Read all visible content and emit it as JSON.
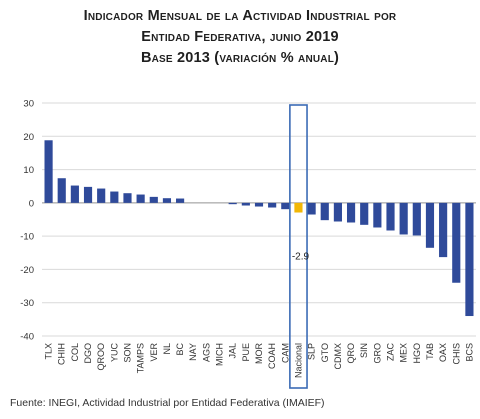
{
  "title": {
    "line1": "Indicador Mensual de la Actividad Industrial por",
    "line2": "Entidad Federativa, junio 2019",
    "line3": "Base 2013 (variación % anual)"
  },
  "source": "Fuente:  INEGI, Actividad Industrial por Entidad Federativa (IMAIEF)",
  "colors": {
    "bar": "#2f4a9a",
    "highlight": "#f2b705",
    "grid": "#d9d9d9",
    "box": "#3b6bb5"
  },
  "chart_data": {
    "type": "bar",
    "title": "Indicador Mensual de la Actividad Industrial por Entidad Federativa, junio 2019 Base 2013 (variación % anual)",
    "xlabel": "",
    "ylabel": "",
    "ylim": [
      -40,
      30
    ],
    "yticks": [
      30,
      20,
      10,
      0,
      -10,
      -20,
      -30,
      -40
    ],
    "grid": true,
    "categories": [
      "TLX",
      "CHIH",
      "COL",
      "DGO",
      "QROO",
      "YUC",
      "SON",
      "TAMPS",
      "VER",
      "NL",
      "BC",
      "NAY",
      "AGS",
      "MICH",
      "JAL",
      "PUE",
      "MOR",
      "COAH",
      "CAM",
      "Nacional",
      "SLP",
      "GTO",
      "CDMX",
      "QRO",
      "SIN",
      "GRO",
      "ZAC",
      "MEX",
      "HGO",
      "TAB",
      "OAX",
      "CHIS",
      "BCS"
    ],
    "values": [
      18.8,
      7.4,
      5.2,
      4.8,
      4.3,
      3.4,
      2.9,
      2.5,
      1.8,
      1.4,
      1.3,
      0.0,
      0.0,
      0.0,
      -0.4,
      -0.8,
      -1.1,
      -1.4,
      -1.9,
      -2.9,
      -3.5,
      -5.2,
      -5.6,
      -5.9,
      -6.6,
      -7.4,
      -8.3,
      -9.5,
      -9.8,
      -13.5,
      -16.3,
      -24.0,
      -34.0
    ],
    "highlight_category": "Nacional",
    "annotation": "-2.9"
  }
}
